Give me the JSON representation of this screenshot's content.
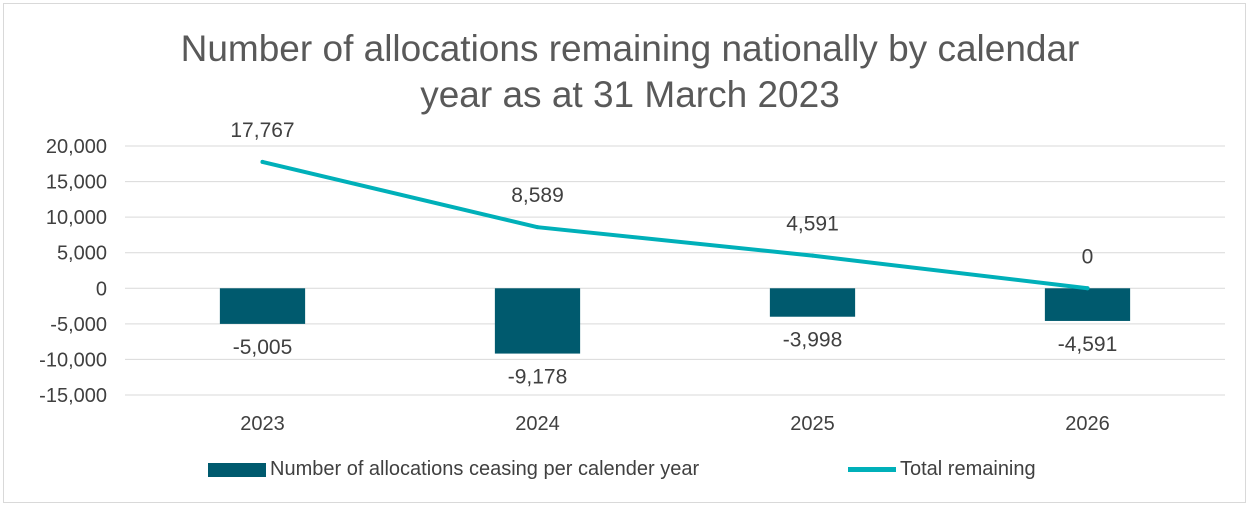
{
  "chart_data": {
    "type": "bar",
    "title_lines": [
      "Number of allocations remaining nationally by calendar",
      "year as at 31 March 2023"
    ],
    "categories": [
      "2023",
      "2024",
      "2025",
      "2026"
    ],
    "series": [
      {
        "name": "Number of allocations ceasing per calender year",
        "kind": "bar",
        "values": [
          -5005,
          -9178,
          -3998,
          -4591
        ],
        "labels": [
          "-5,005",
          "-9,178",
          "-3,998",
          "-4,591"
        ],
        "color": "#005a6e"
      },
      {
        "name": "Total remaining",
        "kind": "line",
        "values": [
          17767,
          8589,
          4591,
          0
        ],
        "labels": [
          "17,767",
          "8,589",
          "4,591",
          "0"
        ],
        "color": "#00b0b9"
      }
    ],
    "ylim": [
      -15000,
      20000
    ],
    "yticks": [
      20000,
      15000,
      10000,
      5000,
      0,
      -5000,
      -10000,
      -15000
    ],
    "ytick_labels": [
      "20,000",
      "15,000",
      "10,000",
      "5,000",
      "0",
      "-5,000",
      "-10,000",
      "-15,000"
    ],
    "grid": true,
    "legend_position": "bottom",
    "gridline_color": "#d9d9d9"
  }
}
